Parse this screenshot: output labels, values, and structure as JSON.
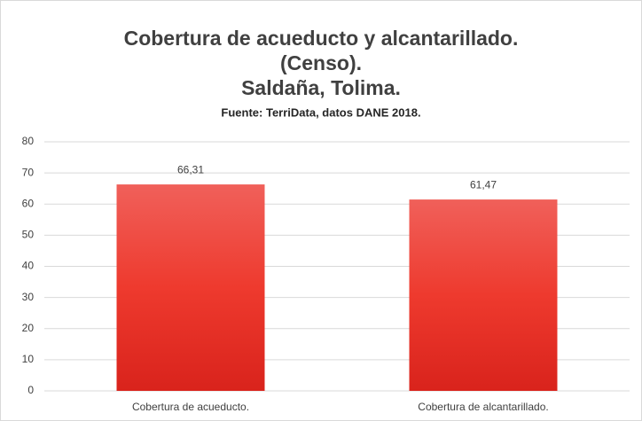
{
  "chart_data": {
    "type": "bar",
    "title": [
      "Cobertura de acueducto y alcantarillado.",
      "(Censo).",
      "Saldaña, Tolima."
    ],
    "subtitle": "Fuente: TerriData, datos DANE 2018.",
    "categories": [
      "Cobertura de acueducto.",
      "Cobertura de alcantarillado."
    ],
    "values": [
      66.31,
      61.47
    ],
    "value_labels": [
      "66,31",
      "61,47"
    ],
    "color": "#e8392e",
    "ylim": [
      0,
      80
    ],
    "yticks": [
      0,
      10,
      20,
      30,
      40,
      50,
      60,
      70,
      80
    ],
    "grid": true
  }
}
